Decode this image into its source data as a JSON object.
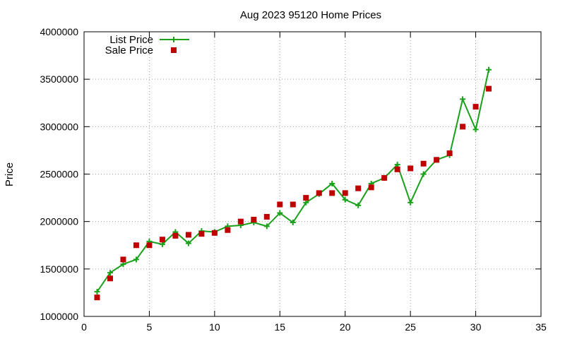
{
  "chart_data": {
    "type": "line",
    "title": "Aug 2023 95120 Home Prices",
    "xlabel": "",
    "ylabel": "Price",
    "xlim": [
      0,
      35
    ],
    "ylim": [
      1000000,
      4000000
    ],
    "xticks": [
      0,
      5,
      10,
      15,
      20,
      25,
      30,
      35
    ],
    "yticks": [
      1000000,
      1500000,
      2000000,
      2500000,
      3000000,
      3500000,
      4000000
    ],
    "grid": true,
    "legend_position": "top-left",
    "x": [
      1,
      2,
      3,
      4,
      5,
      6,
      7,
      8,
      9,
      10,
      11,
      12,
      13,
      14,
      15,
      16,
      17,
      18,
      19,
      20,
      21,
      22,
      23,
      24,
      25,
      26,
      27,
      28,
      29,
      30,
      31
    ],
    "series": [
      {
        "name": "List Price",
        "style": "line-with-plus-markers",
        "color": "#1aa01a",
        "values": [
          1260000,
          1460000,
          1550000,
          1600000,
          1790000,
          1760000,
          1890000,
          1770000,
          1900000,
          1890000,
          1950000,
          1960000,
          1990000,
          1950000,
          2090000,
          1990000,
          2200000,
          2290000,
          2400000,
          2230000,
          2170000,
          2400000,
          2460000,
          2600000,
          2200000,
          2500000,
          2650000,
          2700000,
          3290000,
          2970000,
          3600000
        ]
      },
      {
        "name": "Sale Price",
        "style": "square-markers",
        "color": "#c00000",
        "values": [
          1200000,
          1400000,
          1600000,
          1750000,
          1750000,
          1810000,
          1850000,
          1860000,
          1870000,
          1880000,
          1910000,
          2000000,
          2020000,
          2050000,
          2180000,
          2180000,
          2250000,
          2300000,
          2300000,
          2300000,
          2350000,
          2360000,
          2460000,
          2550000,
          2560000,
          2610000,
          2650000,
          2720000,
          3000000,
          3210000,
          3400000
        ]
      }
    ]
  }
}
